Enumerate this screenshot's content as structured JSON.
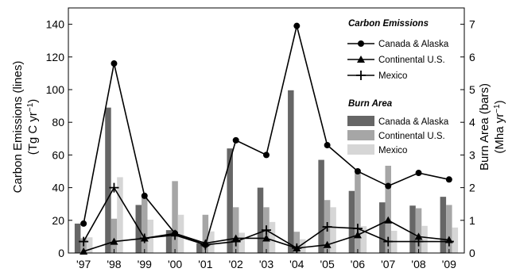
{
  "chart_data": {
    "type": "bar+line",
    "categories": [
      "'97",
      "'98",
      "'99",
      "'00",
      "'01",
      "'02",
      "'03",
      "'04",
      "'05",
      "'06",
      "'07",
      "'08",
      "'09"
    ],
    "left_axis": {
      "label_line1": "Carbon Emissions (lines)",
      "label_line2_prefix": "(Tg C yr",
      "label_line2_exp": "−1",
      "label_line2_suffix": ")",
      "ylim": [
        0,
        150
      ],
      "ticks": [
        0,
        20,
        40,
        60,
        80,
        100,
        120,
        140
      ]
    },
    "right_axis": {
      "label_line1": "Burn Area (bars)",
      "label_line2_prefix": "(Mha yr",
      "label_line2_exp": "−1",
      "label_line2_suffix": ")",
      "ylim": [
        0,
        7.5
      ],
      "ticks": [
        0,
        1,
        2,
        3,
        4,
        5,
        6,
        7
      ]
    },
    "lines_title": "Carbon Emissions",
    "bars_title": "Burn Area",
    "line_series": [
      {
        "name": "Canada & Alaska",
        "marker": "circle",
        "values": [
          18,
          116,
          35,
          12,
          5,
          69,
          60,
          139,
          66,
          50,
          41,
          49,
          45
        ]
      },
      {
        "name": "Continental U.S.",
        "marker": "triangle",
        "values": [
          1,
          7,
          9,
          12,
          6,
          9,
          9,
          3,
          5,
          11,
          20,
          10,
          8
        ]
      },
      {
        "name": "Mexico",
        "marker": "plus",
        "values": [
          7,
          40,
          9,
          11,
          5,
          7,
          14,
          3,
          16,
          15,
          7,
          7,
          7
        ]
      }
    ],
    "bar_series": [
      {
        "name": "Canada & Alaska",
        "color": "#666666",
        "values": [
          0.9,
          4.45,
          1.47,
          0.7,
          0.3,
          3.2,
          2.0,
          4.98,
          2.85,
          1.9,
          1.55,
          1.45,
          1.72
        ]
      },
      {
        "name": "Continental U.S.",
        "color": "#a6a6a6",
        "values": [
          0.45,
          1.05,
          1.7,
          2.2,
          1.17,
          1.4,
          1.4,
          0.65,
          1.62,
          2.45,
          2.67,
          1.37,
          1.47
        ]
      },
      {
        "name": "Mexico",
        "color": "#d6d6d6",
        "values": [
          0.48,
          2.32,
          1.02,
          1.17,
          0.66,
          0.62,
          0.95,
          0.42,
          1.4,
          0.82,
          0.68,
          0.83,
          0.78
        ]
      }
    ]
  }
}
